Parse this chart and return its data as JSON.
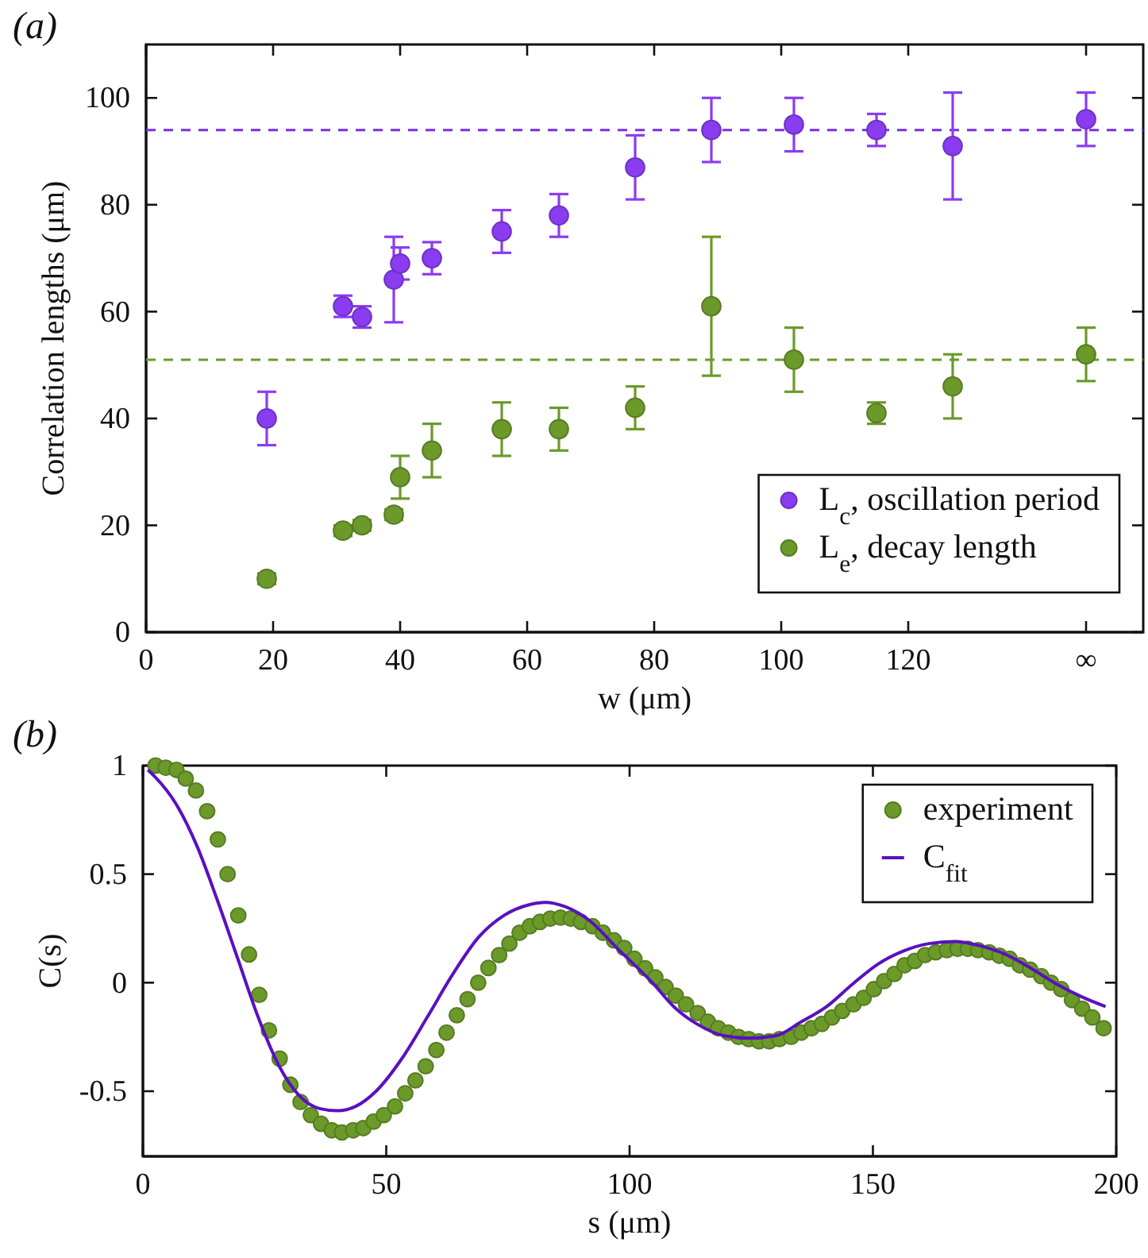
{
  "chart_data": [
    {
      "type": "scatter",
      "title": "(a)",
      "xlabel": "w (μm)",
      "ylabel": "Correlation lengths (μm)",
      "x": [
        19,
        31,
        34,
        39,
        40,
        45,
        56,
        65,
        77,
        89,
        102,
        115,
        127,
        148
      ],
      "series": [
        {
          "name": "L$_{c}$, oscillation period",
          "color": "#8a3cf0",
          "values": [
            40,
            61,
            59,
            66,
            69,
            70,
            75,
            78,
            87,
            94,
            95,
            94,
            91,
            96
          ],
          "errors": [
            5,
            2,
            2,
            [
              58,
              74
            ],
            3,
            3,
            4,
            4,
            6,
            6,
            5,
            3,
            10,
            5
          ]
        },
        {
          "name": "L$_{e}$, decay length",
          "color": "#6b9a2a",
          "values": [
            10,
            19,
            20,
            22,
            29,
            34,
            38,
            38,
            42,
            61,
            51,
            41,
            46,
            52
          ],
          "errors": [
            1,
            1,
            1,
            1,
            4,
            5,
            5,
            4,
            4,
            13,
            6,
            2,
            6,
            5
          ]
        }
      ],
      "ref_lines": [
        {
          "axis": "y",
          "value": 94,
          "color": "#7b2ee0",
          "line_style": "dashed"
        },
        {
          "axis": "y",
          "value": 51,
          "color": "#6b9a2a",
          "line_style": "dashed"
        }
      ],
      "xlim": [
        0,
        157
      ],
      "xticks": [
        0,
        20,
        40,
        60,
        80,
        100,
        120,
        {
          "value": 148,
          "label": "∞"
        }
      ],
      "ylim": [
        0,
        110
      ],
      "yticks": [
        0,
        20,
        40,
        60,
        80,
        100
      ],
      "marker": "circle",
      "grid": false,
      "legend": "bottom right"
    },
    {
      "type": "scatter",
      "title": "(b)",
      "xlabel": "s (μm)",
      "ylabel": "C(s)",
      "series": [
        {
          "name": "experiment",
          "marker": "circle",
          "color": "#6b9a2a",
          "x": [
            2.6,
            4.7,
            6.9,
            8.8,
            10.9,
            13.2,
            15.4,
            17.4,
            19.6,
            21.8,
            23.9,
            25.9,
            28.1,
            30.3,
            32.4,
            34.5,
            36.6,
            38.8,
            40.9,
            43.2,
            45.3,
            47.4,
            49.5,
            51.8,
            53.9,
            56,
            58.1,
            60.3,
            62.4,
            64.5,
            66.7,
            68.9,
            71,
            73.2,
            75.3,
            77.4,
            79.5,
            81.6,
            83.7,
            85.8,
            87.9,
            90,
            92.4,
            94.5,
            96.8,
            98.9,
            101,
            103.2,
            105.3,
            107.4,
            109.5,
            111.6,
            114,
            116.1,
            118.2,
            120.3,
            122.4,
            124.5,
            126.6,
            128.7,
            130.8,
            133.2,
            135.3,
            137.4,
            139.5,
            141.6,
            143.7,
            146,
            148.1,
            150.2,
            152.3,
            154.4,
            156.5,
            158.6,
            160.7,
            162.9,
            165.2,
            167.4,
            169.5,
            171.6,
            173.9,
            176,
            178.1,
            180.2,
            182.3,
            184.6,
            186.6,
            188.7,
            190.9,
            193,
            195.1,
            197.4
          ],
          "values": [
            1.0,
            0.99,
            0.98,
            0.94,
            0.885,
            0.79,
            0.66,
            0.5,
            0.31,
            0.13,
            -0.056,
            -0.22,
            -0.35,
            -0.47,
            -0.55,
            -0.61,
            -0.65,
            -0.68,
            -0.69,
            -0.68,
            -0.67,
            -0.64,
            -0.61,
            -0.57,
            -0.51,
            -0.45,
            -0.385,
            -0.31,
            -0.23,
            -0.15,
            -0.076,
            0.0,
            0.068,
            0.127,
            0.18,
            0.23,
            0.26,
            0.28,
            0.295,
            0.3,
            0.295,
            0.28,
            0.26,
            0.23,
            0.195,
            0.16,
            0.11,
            0.066,
            0.024,
            -0.02,
            -0.06,
            -0.1,
            -0.14,
            -0.18,
            -0.21,
            -0.23,
            -0.25,
            -0.26,
            -0.27,
            -0.27,
            -0.26,
            -0.25,
            -0.23,
            -0.21,
            -0.19,
            -0.16,
            -0.13,
            -0.1,
            -0.07,
            -0.03,
            0.007,
            0.04,
            0.08,
            0.1,
            0.127,
            0.14,
            0.15,
            0.156,
            0.156,
            0.15,
            0.14,
            0.124,
            0.11,
            0.08,
            0.06,
            0.03,
            0.0,
            -0.03,
            -0.08,
            -0.12,
            -0.16,
            -0.21
          ]
        },
        {
          "name": "C$_{fit}$",
          "type": "line",
          "color": "#5a10c0",
          "x": [
            1,
            2.4,
            6.9,
            11.1,
            15.3,
            19.5,
            23.7,
            27.9,
            32.1,
            36.3,
            40,
            43.7,
            47.9,
            53.2,
            58.4,
            63.7,
            69,
            74.2,
            79.5,
            82.6,
            86.8,
            92.1,
            97.4,
            104.7,
            109.3,
            114.2,
            119.5,
            124.6,
            130,
            135.3,
            140.5,
            145.8,
            151,
            156.3,
            161.5,
            166.8,
            172,
            177.3,
            182.5,
            187.8,
            193,
            197.8
          ],
          "values": [
            0.98,
            0.95,
            0.82,
            0.63,
            0.38,
            0.11,
            -0.16,
            -0.38,
            -0.52,
            -0.58,
            -0.59,
            -0.57,
            -0.5,
            -0.35,
            -0.16,
            0.04,
            0.21,
            0.31,
            0.36,
            0.37,
            0.35,
            0.28,
            0.16,
            0.0,
            -0.115,
            -0.195,
            -0.245,
            -0.256,
            -0.245,
            -0.18,
            -0.11,
            -0.007,
            0.085,
            0.146,
            0.18,
            0.19,
            0.17,
            0.13,
            0.066,
            -0.007,
            -0.066,
            -0.11
          ]
        }
      ],
      "xlim": [
        0,
        200
      ],
      "xticks": [
        0,
        50,
        100,
        150,
        200
      ],
      "ylim": [
        -0.8,
        1
      ],
      "yticks": [
        -0.5,
        0,
        0.5,
        1
      ],
      "line_style": "solid",
      "grid": false,
      "legend": "top right"
    }
  ]
}
